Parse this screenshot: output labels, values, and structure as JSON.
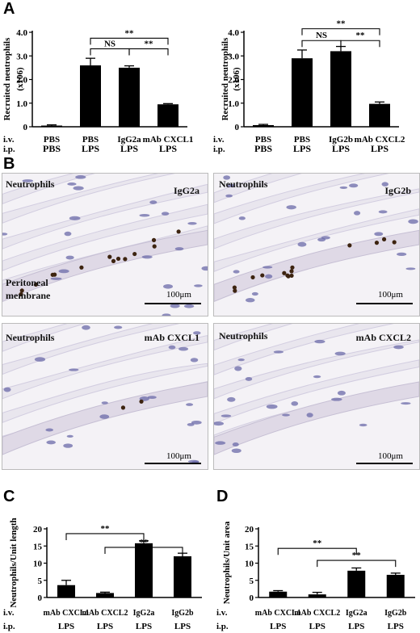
{
  "panel_letters": {
    "a": "A",
    "b": "B",
    "c": "C",
    "d": "D"
  },
  "row_labels": {
    "iv": "i.v.",
    "ip": "i.p."
  },
  "chart_data": [
    {
      "id": "A1",
      "type": "bar",
      "ylabel": "Recruited neutrophils",
      "ylabel2": "(x106)",
      "ylim": [
        0,
        4
      ],
      "yticks": [
        "0",
        "1.0",
        "2.0",
        "3.0",
        "4.0"
      ],
      "categories": [
        {
          "iv": "PBS",
          "ip": "PBS"
        },
        {
          "iv": "PBS",
          "ip": "LPS"
        },
        {
          "iv": "IgG2a",
          "ip": "LPS"
        },
        {
          "iv": "mAb CXCL1",
          "ip": "LPS"
        }
      ],
      "values": [
        0.05,
        2.6,
        2.5,
        0.95
      ],
      "errors": [
        0.03,
        0.3,
        0.08,
        0.03
      ],
      "brackets": [
        {
          "from": 1,
          "to": 2,
          "label": "NS",
          "level": 3.3
        },
        {
          "from": 2,
          "to": 3,
          "label": "**",
          "level": 3.3
        },
        {
          "from": 1,
          "to": 3,
          "label": "**",
          "level": 3.75
        }
      ]
    },
    {
      "id": "A2",
      "type": "bar",
      "ylabel": "Recruited neutrophils",
      "ylabel2": "(x106)",
      "ylim": [
        0,
        4
      ],
      "yticks": [
        "0",
        "1.0",
        "2.0",
        "3.0",
        "4.0"
      ],
      "categories": [
        {
          "iv": "PBS",
          "ip": "PBS"
        },
        {
          "iv": "PBS",
          "ip": "LPS"
        },
        {
          "iv": "IgG2b",
          "ip": "LPS"
        },
        {
          "iv": "mAb CXCL2",
          "ip": "LPS"
        }
      ],
      "values": [
        0.07,
        2.9,
        3.2,
        0.97
      ],
      "errors": [
        0.03,
        0.35,
        0.2,
        0.08
      ],
      "brackets": [
        {
          "from": 1,
          "to": 2,
          "label": "NS",
          "level": 3.65
        },
        {
          "from": 2,
          "to": 3,
          "label": "**",
          "level": 3.65
        },
        {
          "from": 1,
          "to": 3,
          "label": "**",
          "level": 4.15
        }
      ]
    },
    {
      "id": "C",
      "type": "bar",
      "ylabel": "Neutrophils/Unit length",
      "ylim": [
        0,
        20
      ],
      "yticks": [
        "0",
        "5",
        "10",
        "15",
        "20"
      ],
      "categories": [
        {
          "iv": "mAb CXCL1",
          "ip": "LPS"
        },
        {
          "iv": "mAb CXCL2",
          "ip": "LPS"
        },
        {
          "iv": "IgG2a",
          "ip": "LPS"
        },
        {
          "iv": "IgG2b",
          "ip": "LPS"
        }
      ],
      "values": [
        3.6,
        1.3,
        15.8,
        12.0
      ],
      "errors": [
        1.4,
        0.25,
        0.7,
        0.9
      ],
      "brackets": [
        {
          "from": 0,
          "to": 2,
          "label": "**",
          "level": 18.6
        },
        {
          "from": 1,
          "to": 3,
          "label": "**",
          "level": 14.6
        }
      ]
    },
    {
      "id": "D",
      "type": "bar",
      "ylabel": "Neutrophils/Unit area",
      "ylim": [
        0,
        20
      ],
      "yticks": [
        "0",
        "5",
        "10",
        "15",
        "20"
      ],
      "categories": [
        {
          "iv": "mAb CXCL1",
          "ip": "LPS"
        },
        {
          "iv": "mAb CXCL2",
          "ip": "LPS"
        },
        {
          "iv": "IgG2a",
          "ip": "LPS"
        },
        {
          "iv": "IgG2b",
          "ip": "LPS"
        }
      ],
      "values": [
        1.7,
        0.9,
        7.8,
        6.6
      ],
      "errors": [
        0.3,
        0.6,
        0.8,
        0.5
      ],
      "brackets": [
        {
          "from": 0,
          "to": 2,
          "label": "**",
          "level": 14.3
        },
        {
          "from": 1,
          "to": 3,
          "label": "**",
          "level": 10.8
        }
      ]
    }
  ],
  "micrographs": [
    {
      "label": "Neutrophils",
      "treatment": "IgG2a",
      "extra_label_1": "Peritoneal",
      "extra_label_2": "membrane",
      "scale": "100μm",
      "cells": "many"
    },
    {
      "label": "Neutrophils",
      "treatment": "IgG2b",
      "scale": "100μm",
      "cells": "many"
    },
    {
      "label": "Neutrophils",
      "treatment": "mAb CXCL1",
      "scale": "100μm",
      "cells": "few"
    },
    {
      "label": "Neutrophils",
      "treatment": "mAb CXCL2",
      "scale": "100μm",
      "cells": "none"
    }
  ],
  "colors": {
    "bar": "#000000",
    "tissue": "#f4f2f6",
    "nucleus": "#6b6aa8",
    "neutrophil": "#3d2410",
    "membrane": "#dfd9e6"
  }
}
